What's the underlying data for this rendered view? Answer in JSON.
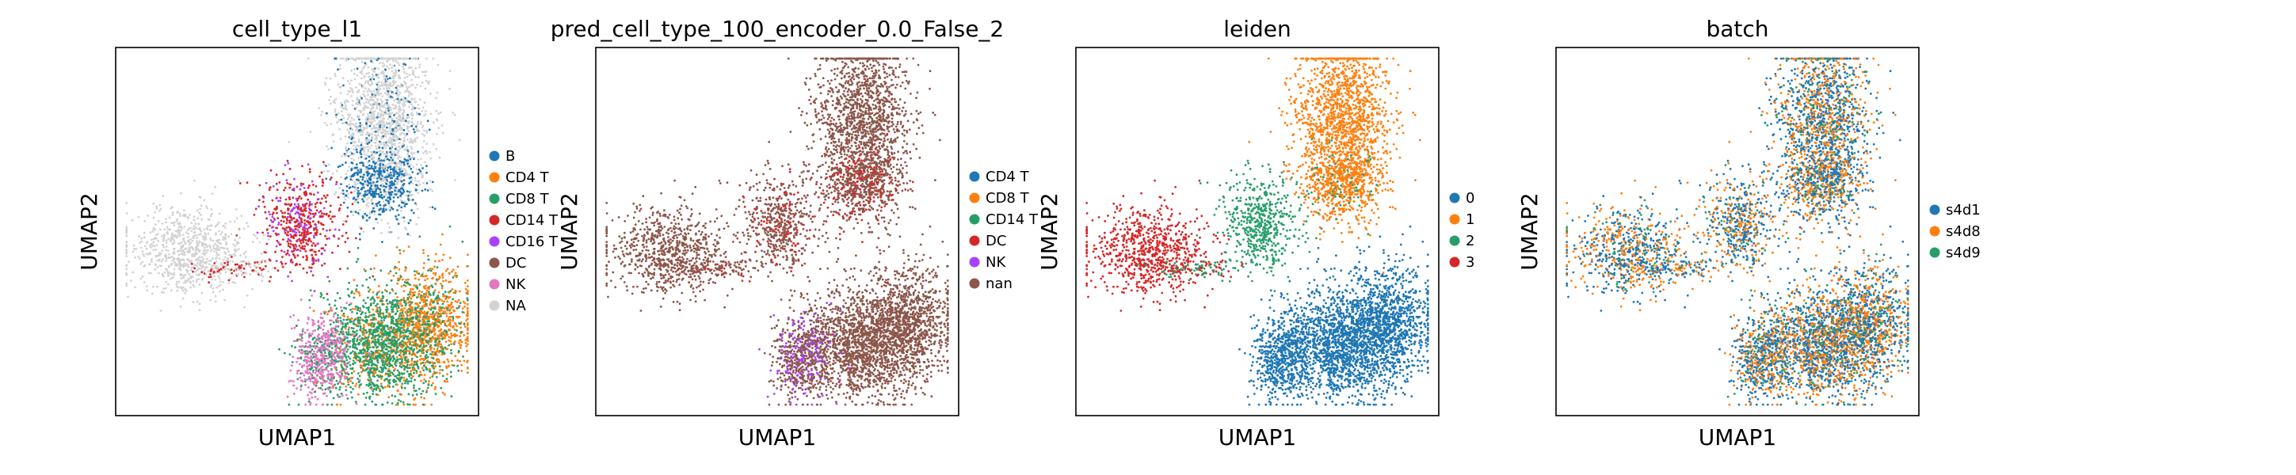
{
  "chart_data": [
    {
      "type": "scatter",
      "title": "cell_type_l1",
      "xlabel": "UMAP1",
      "ylabel": "UMAP2",
      "grid": false,
      "legend_position": "right",
      "legend": [
        {
          "label": "B",
          "color": "#1f77b4"
        },
        {
          "label": "CD4 T",
          "color": "#ff7f0e"
        },
        {
          "label": "CD8 T",
          "color": "#279e68"
        },
        {
          "label": "CD14 T",
          "color": "#d62728"
        },
        {
          "label": "CD16 T",
          "color": "#aa40fc"
        },
        {
          "label": "DC",
          "color": "#8c564b"
        },
        {
          "label": "NK",
          "color": "#e377c2"
        },
        {
          "label": "NA",
          "color": "#d3d3d3"
        }
      ]
    },
    {
      "type": "scatter",
      "title": "pred_cell_type_100_encoder_0.0_False_2",
      "xlabel": "UMAP1",
      "ylabel": "UMAP2",
      "grid": false,
      "legend_position": "right",
      "legend": [
        {
          "label": "CD4 T",
          "color": "#1f77b4"
        },
        {
          "label": "CD8 T",
          "color": "#ff7f0e"
        },
        {
          "label": "CD14 T",
          "color": "#279e68"
        },
        {
          "label": "DC",
          "color": "#d62728"
        },
        {
          "label": "NK",
          "color": "#aa40fc"
        },
        {
          "label": "nan",
          "color": "#8c564b"
        }
      ]
    },
    {
      "type": "scatter",
      "title": "leiden",
      "xlabel": "UMAP1",
      "ylabel": "UMAP2",
      "grid": false,
      "legend_position": "right",
      "legend": [
        {
          "label": "0",
          "color": "#1f77b4"
        },
        {
          "label": "1",
          "color": "#ff7f0e"
        },
        {
          "label": "2",
          "color": "#279e68"
        },
        {
          "label": "3",
          "color": "#d62728"
        }
      ]
    },
    {
      "type": "scatter",
      "title": "batch",
      "xlabel": "UMAP1",
      "ylabel": "UMAP2",
      "grid": false,
      "legend_position": "right",
      "legend": [
        {
          "label": "s4d1",
          "color": "#1f77b4"
        },
        {
          "label": "s4d8",
          "color": "#ff7f0e"
        },
        {
          "label": "s4d9",
          "color": "#279e68"
        }
      ]
    }
  ]
}
